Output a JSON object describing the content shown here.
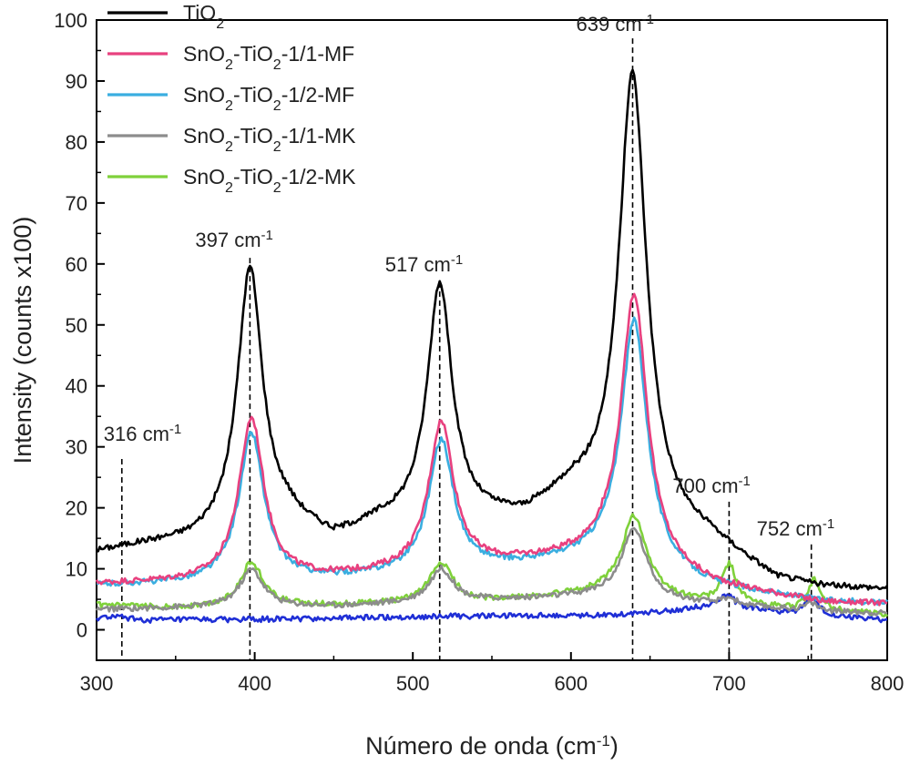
{
  "chart_data": {
    "type": "line",
    "xlabel": "Número de onda (cm",
    "xlabel_sup": "-1",
    "xlabel_end": ")",
    "ylabel": "Intensity (counts x100)",
    "xlim": [
      300,
      800
    ],
    "ylim": [
      -5,
      100
    ],
    "xticks": [
      300,
      400,
      500,
      600,
      700,
      800
    ],
    "yticks": [
      0,
      10,
      20,
      30,
      40,
      50,
      60,
      70,
      80,
      90,
      100
    ],
    "grid": false,
    "legend_position": "top-left",
    "series": [
      {
        "name": "TiO",
        "name_sub": "2",
        "name_rest": "",
        "color": "#000000",
        "in_legend": true,
        "baseline": [
          [
            300,
            12.6
          ],
          [
            330,
            13.7
          ],
          [
            360,
            14.2
          ],
          [
            420,
            17.5
          ],
          [
            450,
            14.5
          ],
          [
            480,
            17.0
          ],
          [
            570,
            17.8
          ],
          [
            600,
            21.5
          ],
          [
            690,
            14.0
          ],
          [
            730,
            8.0
          ],
          [
            760,
            6.8
          ],
          [
            800,
            6.5
          ]
        ],
        "peaks": [
          {
            "center": 397,
            "height": 43,
            "width": 9.5
          },
          {
            "center": 517,
            "height": 39,
            "width": 9.5
          },
          {
            "center": 639,
            "height": 73,
            "width": 10.5
          }
        ]
      },
      {
        "name": "SnO",
        "name_sub": "2",
        "name_rest": "-TiO",
        "name_sub2": "2",
        "name_tail": "-1/1-MF",
        "color": "#e8417f",
        "in_legend": true,
        "baseline": [
          [
            300,
            7.5
          ],
          [
            360,
            7.8
          ],
          [
            450,
            8.5
          ],
          [
            550,
            10.5
          ],
          [
            620,
            12.0
          ],
          [
            690,
            7.0
          ],
          [
            760,
            4.4
          ],
          [
            800,
            4.2
          ]
        ],
        "peaks": [
          {
            "center": 398,
            "height": 26.5,
            "width": 9.5
          },
          {
            "center": 518,
            "height": 24,
            "width": 9.5
          },
          {
            "center": 640,
            "height": 44.5,
            "width": 10
          }
        ]
      },
      {
        "name": "SnO",
        "name_sub": "2",
        "name_rest": "-TiO",
        "name_sub2": "2",
        "name_tail": "-1/2-MF",
        "color": "#3aaee0",
        "in_legend": true,
        "baseline": [
          [
            300,
            7.2
          ],
          [
            360,
            7.5
          ],
          [
            450,
            8.2
          ],
          [
            550,
            10.0
          ],
          [
            620,
            11.5
          ],
          [
            690,
            6.8
          ],
          [
            760,
            4.6
          ],
          [
            800,
            4.3
          ]
        ],
        "peaks": [
          {
            "center": 398,
            "height": 24.3,
            "width": 9.5
          },
          {
            "center": 518,
            "height": 21.5,
            "width": 9.5
          },
          {
            "center": 640,
            "height": 40.5,
            "width": 10
          }
        ]
      },
      {
        "name": "SnO",
        "name_sub": "2",
        "name_rest": "-TiO",
        "name_sub2": "2",
        "name_tail": "-1/1-MK",
        "color": "#8c8c8c",
        "in_legend": true,
        "baseline": [
          [
            300,
            3.3
          ],
          [
            360,
            3.6
          ],
          [
            450,
            3.8
          ],
          [
            550,
            4.8
          ],
          [
            620,
            5.5
          ],
          [
            690,
            4.0
          ],
          [
            760,
            3.0
          ],
          [
            800,
            2.7
          ]
        ],
        "peaks": [
          {
            "center": 398,
            "height": 6.2,
            "width": 9
          },
          {
            "center": 518,
            "height": 5.5,
            "width": 9
          },
          {
            "center": 640,
            "height": 11.5,
            "width": 9.5
          },
          {
            "center": 700,
            "height": 1.2,
            "width": 6
          },
          {
            "center": 752,
            "height": 1.2,
            "width": 5
          }
        ]
      },
      {
        "name": "SnO",
        "name_sub": "2",
        "name_rest": "-TiO",
        "name_sub2": "2",
        "name_tail": "-1/2-MK",
        "color": "#7fd13b",
        "in_legend": true,
        "baseline": [
          [
            300,
            4.0
          ],
          [
            320,
            3.8
          ],
          [
            360,
            3.5
          ],
          [
            450,
            4.0
          ],
          [
            550,
            4.6
          ],
          [
            620,
            6.0
          ],
          [
            690,
            4.2
          ],
          [
            760,
            3.0
          ],
          [
            800,
            2.5
          ]
        ],
        "peaks": [
          {
            "center": 398,
            "height": 7.3,
            "width": 9
          },
          {
            "center": 518,
            "height": 6.5,
            "width": 9
          },
          {
            "center": 640,
            "height": 13.2,
            "width": 9.5
          },
          {
            "center": 700,
            "height": 6.5,
            "width": 5.5
          },
          {
            "center": 754,
            "height": 5.0,
            "width": 4.5
          }
        ]
      },
      {
        "name": "",
        "color": "#1f2fd6",
        "in_legend": false,
        "baseline": [
          [
            300,
            1.8
          ],
          [
            310,
            2.2
          ],
          [
            330,
            1.6
          ],
          [
            400,
            1.7
          ],
          [
            520,
            2.2
          ],
          [
            620,
            2.4
          ],
          [
            680,
            3.4
          ],
          [
            720,
            3.2
          ],
          [
            740,
            2.4
          ],
          [
            770,
            2.0
          ],
          [
            800,
            1.6
          ]
        ],
        "peaks": [
          {
            "center": 698,
            "height": 2.4,
            "width": 7
          },
          {
            "center": 752,
            "height": 2.8,
            "width": 6
          }
        ]
      }
    ],
    "annotations": [
      {
        "x": 316,
        "label": "316 cm",
        "sup": "-1",
        "line_top": 28
      },
      {
        "x": 397,
        "label": "397 cm",
        "sup": "-1",
        "line_top": 61
      },
      {
        "x": 517,
        "label": "517 cm",
        "sup": "-1",
        "line_top": 57
      },
      {
        "x": 639,
        "label": "639 cm",
        "sup": "-1",
        "line_top": 97
      },
      {
        "x": 700,
        "label": "700 cm",
        "sup": "-1",
        "line_top": 21
      },
      {
        "x": 752,
        "label": "752 cm",
        "sup": "-1",
        "line_top": 14
      }
    ]
  }
}
